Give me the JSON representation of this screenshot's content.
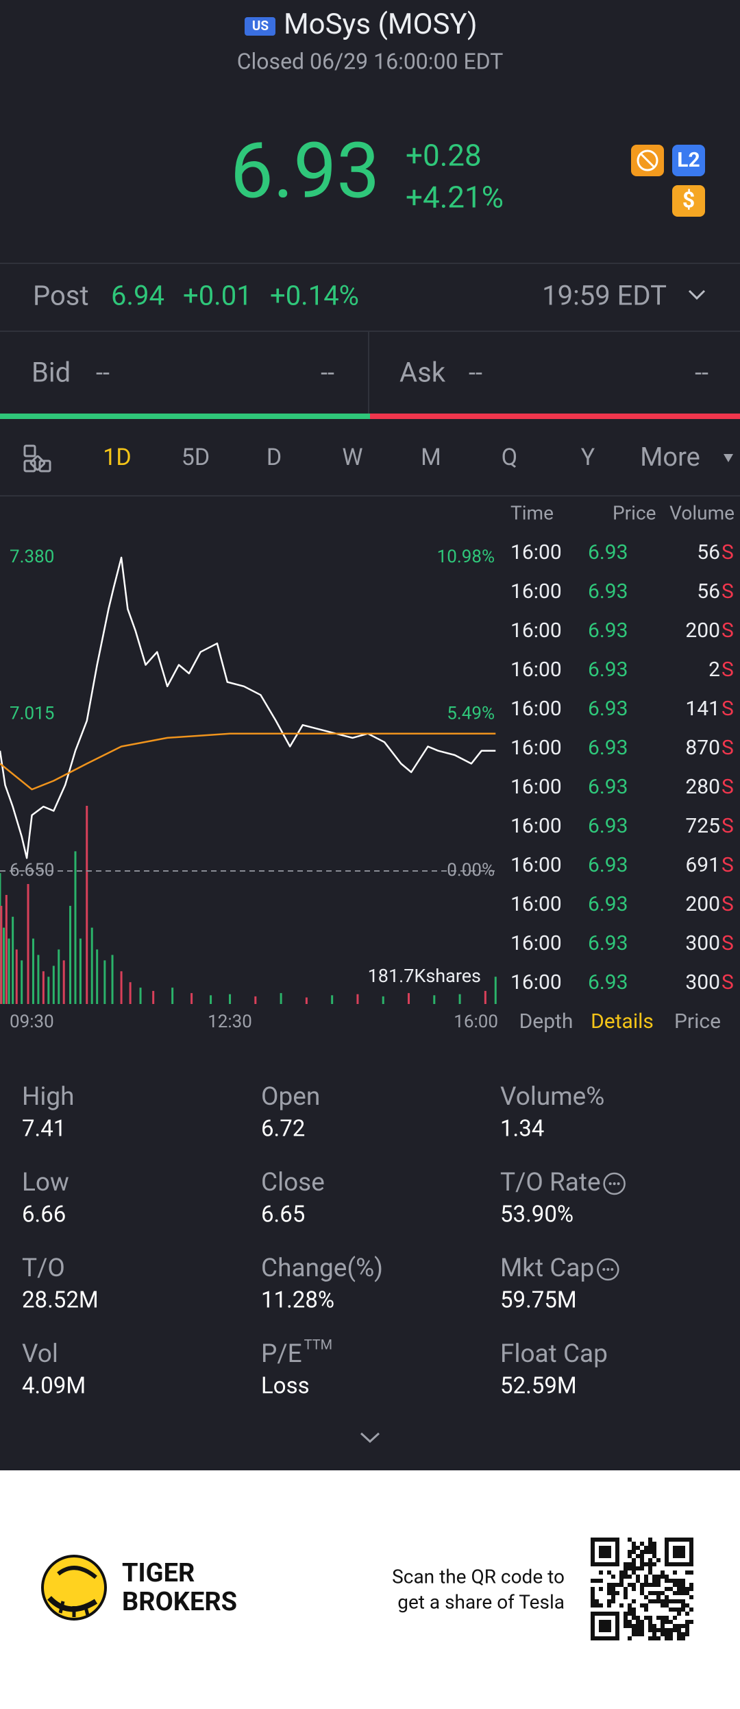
{
  "header": {
    "market_badge": "US",
    "title": "MoSys (MOSY)",
    "status": "Closed 06/29 16:00:00 EDT"
  },
  "quote": {
    "price": "6.93",
    "change": "+0.28",
    "change_pct": "+4.21%",
    "badge_l2": "L2",
    "badge_dollar": "$"
  },
  "post": {
    "label": "Post",
    "price": "6.94",
    "change": "+0.01",
    "change_pct": "+0.14%",
    "time": "19:59 EDT"
  },
  "bid": {
    "label": "Bid",
    "price": "--",
    "size": "--"
  },
  "ask": {
    "label": "Ask",
    "price": "--",
    "size": "--"
  },
  "tabs": {
    "items": [
      "1D",
      "5D",
      "D",
      "W",
      "M",
      "Q",
      "Y",
      "More"
    ],
    "active": 0
  },
  "intraday_chart": {
    "type": "line",
    "xlim": [
      "09:30",
      "16:00"
    ],
    "xticks": [
      "09:30",
      "12:30",
      "16:00"
    ],
    "ylim": [
      6.65,
      7.38
    ],
    "yticks": [
      {
        "value": 7.38,
        "label": "7.380"
      },
      {
        "value": 7.015,
        "label": "7.015"
      },
      {
        "value": 6.65,
        "label": "6.650"
      }
    ],
    "y2lim": [
      0,
      10.98
    ],
    "y2ticks": [
      {
        "value": 10.98,
        "label": "10.98%"
      },
      {
        "value": 5.49,
        "label": "5.49%"
      },
      {
        "value": 0,
        "label": "0.00%"
      }
    ],
    "series": [
      {
        "color": "#ffffff",
        "x": [
          "09:30",
          "09:34",
          "09:40",
          "09:47",
          "09:51",
          "09:55",
          "10:04",
          "10:12",
          "10:21",
          "10:29",
          "10:38",
          "10:46",
          "10:55",
          "10:59",
          "11:05",
          "11:10",
          "11:16",
          "11:24",
          "11:33",
          "11:41",
          "11:50",
          "11:58",
          "12:07",
          "12:20",
          "12:28",
          "12:41",
          "12:54",
          "13:06",
          "13:17",
          "13:27",
          "13:40",
          "13:53",
          "14:06",
          "14:18",
          "14:31",
          "14:44",
          "14:52",
          "15:05",
          "15:13",
          "15:26",
          "15:39",
          "15:47",
          "15:58"
        ],
        "values": [
          6.93,
          6.85,
          6.8,
          6.73,
          6.68,
          6.78,
          6.8,
          6.79,
          6.85,
          6.93,
          7.0,
          7.13,
          7.26,
          7.31,
          7.38,
          7.26,
          7.21,
          7.13,
          7.16,
          7.08,
          7.13,
          7.11,
          7.16,
          7.18,
          7.09,
          7.08,
          7.06,
          7.0,
          6.94,
          6.99,
          6.98,
          6.97,
          6.96,
          6.97,
          6.95,
          6.9,
          6.88,
          6.94,
          6.93,
          6.92,
          6.9,
          6.93,
          6.93
        ]
      },
      {
        "color": "#f0941d",
        "x": [
          "09:30",
          "09:55",
          "10:12",
          "10:38",
          "11:05",
          "11:41",
          "12:30",
          "13:40",
          "14:44",
          "15:58"
        ],
        "values": [
          6.9,
          6.84,
          6.86,
          6.9,
          6.94,
          6.96,
          6.97,
          6.97,
          6.97,
          6.97
        ]
      }
    ],
    "volume": {
      "scale": {
        "value": 181700,
        "label": "181.7Kshares"
      },
      "x": [
        "09:30",
        "09:31",
        "09:33",
        "09:35",
        "09:37",
        "09:40",
        "09:43",
        "09:47",
        "09:52",
        "09:56",
        "10:00",
        "10:04",
        "10:08",
        "10:12",
        "10:16",
        "10:20",
        "10:25",
        "10:29",
        "10:33",
        "10:38",
        "10:42",
        "10:46",
        "10:52",
        "10:58",
        "11:05",
        "11:12",
        "11:20",
        "11:30",
        "11:45",
        "12:00",
        "12:15",
        "12:30",
        "12:50",
        "13:10",
        "13:30",
        "13:50",
        "14:10",
        "14:30",
        "14:50",
        "15:10",
        "15:30",
        "15:50",
        "15:58"
      ],
      "values": [
        120000,
        90000,
        70000,
        100000,
        60000,
        80000,
        50000,
        40000,
        110000,
        60000,
        45000,
        30000,
        25000,
        35000,
        50000,
        40000,
        90000,
        140000,
        60000,
        181700,
        70000,
        50000,
        40000,
        45000,
        30000,
        20000,
        15000,
        12000,
        15000,
        10000,
        8000,
        9000,
        7000,
        10000,
        6000,
        8000,
        9000,
        7000,
        10000,
        8000,
        9000,
        12000,
        25000
      ],
      "colors": [
        "#2bb36a",
        "#d9405a",
        "#2bb36a",
        "#d9405a",
        "#2bb36a",
        "#2bb36a",
        "#d9405a",
        "#2bb36a",
        "#d9405a",
        "#2bb36a",
        "#2bb36a",
        "#d9405a",
        "#2bb36a",
        "#2bb36a",
        "#2bb36a",
        "#d9405a",
        "#2bb36a",
        "#2bb36a",
        "#2bb36a",
        "#d9405a",
        "#2bb36a",
        "#2bb36a",
        "#2bb36a",
        "#2bb36a",
        "#d9405a",
        "#d9405a",
        "#2bb36a",
        "#d9405a",
        "#2bb36a",
        "#d9405a",
        "#2bb36a",
        "#2bb36a",
        "#d9405a",
        "#2bb36a",
        "#d9405a",
        "#2bb36a",
        "#d9405a",
        "#2bb36a",
        "#d9405a",
        "#2bb36a",
        "#2bb36a",
        "#d9405a",
        "#2bb36a"
      ]
    }
  },
  "trades": {
    "headers": [
      "Time",
      "Price",
      "Volume"
    ],
    "rows": [
      [
        "16:00",
        "6.93",
        "56",
        "S"
      ],
      [
        "16:00",
        "6.93",
        "56",
        "S"
      ],
      [
        "16:00",
        "6.93",
        "200",
        "S"
      ],
      [
        "16:00",
        "6.93",
        "2",
        "S"
      ],
      [
        "16:00",
        "6.93",
        "141",
        "S"
      ],
      [
        "16:00",
        "6.93",
        "870",
        "S"
      ],
      [
        "16:00",
        "6.93",
        "280",
        "S"
      ],
      [
        "16:00",
        "6.93",
        "725",
        "S"
      ],
      [
        "16:00",
        "6.93",
        "691",
        "S"
      ],
      [
        "16:00",
        "6.93",
        "200",
        "S"
      ],
      [
        "16:00",
        "6.93",
        "300",
        "S"
      ],
      [
        "16:00",
        "6.93",
        "300",
        "S"
      ]
    ],
    "tabs": [
      "Depth",
      "Details",
      "Price"
    ],
    "active_tab": 1
  },
  "stats": [
    {
      "label": "High",
      "value": "7.41"
    },
    {
      "label": "Open",
      "value": "6.72"
    },
    {
      "label": "Volume%",
      "value": "1.34"
    },
    {
      "label": "Low",
      "value": "6.66"
    },
    {
      "label": "Close",
      "value": "6.65"
    },
    {
      "label": "T/O Rate",
      "value": "53.90%",
      "info": true
    },
    {
      "label": "T/O",
      "value": "28.52M"
    },
    {
      "label": "Change(%)",
      "value": "11.28%"
    },
    {
      "label": "Mkt Cap",
      "value": "59.75M",
      "info": true
    },
    {
      "label": "Vol",
      "value": "4.09M"
    },
    {
      "label": "P/E",
      "superscript": "TTM",
      "value": "Loss"
    },
    {
      "label": "Float Cap",
      "value": "52.59M"
    }
  ],
  "footer": {
    "brand": [
      "TIGER",
      "BROKERS"
    ],
    "promo": [
      "Scan the QR code to",
      "get a share of Tesla"
    ]
  }
}
